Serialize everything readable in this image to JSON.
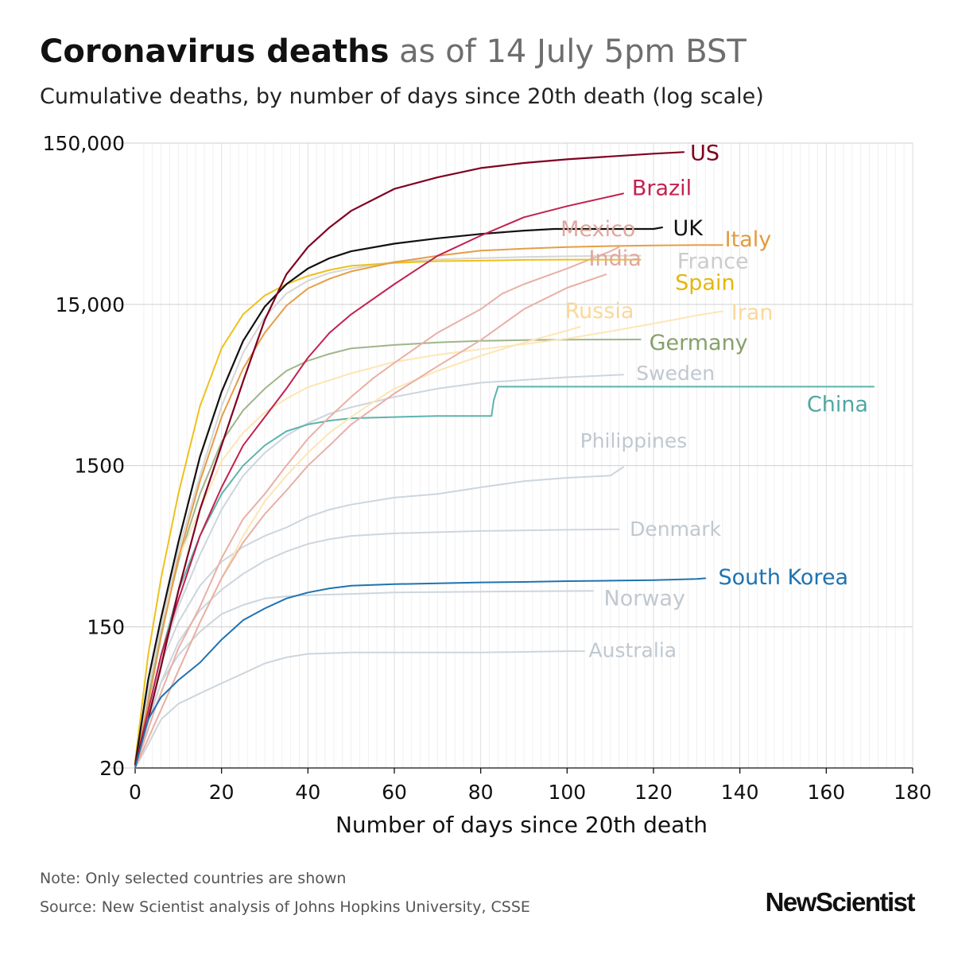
{
  "header": {
    "title_bold": "Coronavirus deaths",
    "title_light": " as of 14 July 5pm BST",
    "subtitle": "Cumulative deaths, by number of days since 20th death (log scale)"
  },
  "footer": {
    "note": "Note: Only selected countries are shown",
    "source": "Source: New Scientist analysis of Johns Hopkins University, CSSE",
    "logo": "NewScientist"
  },
  "chart_data": {
    "type": "line",
    "title": "Coronavirus deaths as of 14 July 5pm BST",
    "subtitle": "Cumulative deaths, by number of days since 20th death (log scale)",
    "xlabel": "Number of days since 20th death",
    "ylabel": "",
    "xlim": [
      0,
      180
    ],
    "ylim": [
      20,
      150000
    ],
    "yscale": "log",
    "x_ticks": [
      0,
      20,
      40,
      60,
      80,
      100,
      120,
      140,
      160,
      180
    ],
    "x_tick_labels": [
      "0",
      "20",
      "40",
      "60",
      "80",
      "100",
      "120",
      "140",
      "160",
      "180"
    ],
    "y_ticks": [
      20,
      150,
      1500,
      15000,
      150000
    ],
    "y_tick_labels": [
      "20",
      "150",
      "1500",
      "15,000",
      "150,000"
    ],
    "grid": true,
    "series": [
      {
        "name": "Australia",
        "color": "#cdd5dd",
        "label_color": "#c0c8d0",
        "x": [
          0,
          3,
          6,
          10,
          15,
          20,
          25,
          30,
          35,
          40,
          50,
          60,
          80,
          100,
          104
        ],
        "y": [
          20,
          28,
          40,
          50,
          58,
          67,
          77,
          89,
          97,
          102,
          104,
          104,
          104,
          106,
          106
        ]
      },
      {
        "name": "Norway",
        "color": "#cdd5dd",
        "label_color": "#c0c8d0",
        "x": [
          0,
          3,
          6,
          10,
          15,
          20,
          25,
          30,
          35,
          40,
          50,
          60,
          80,
          100,
          106
        ],
        "y": [
          21,
          40,
          68,
          100,
          140,
          180,
          205,
          225,
          232,
          236,
          240,
          245,
          248,
          250,
          251
        ]
      },
      {
        "name": "Denmark",
        "color": "#cdd5dd",
        "label_color": "#c0c8d0",
        "x": [
          0,
          3,
          6,
          10,
          15,
          20,
          25,
          30,
          35,
          40,
          45,
          50,
          60,
          80,
          100,
          112
        ],
        "y": [
          20,
          38,
          68,
          120,
          190,
          255,
          320,
          385,
          440,
          490,
          525,
          550,
          570,
          590,
          600,
          605
        ]
      },
      {
        "name": "Philippines",
        "color": "#cdd5dd",
        "label_color": "#c0c8d0",
        "x": [
          0,
          3,
          6,
          10,
          15,
          20,
          25,
          30,
          35,
          40,
          45,
          50,
          60,
          70,
          80,
          90,
          100,
          110,
          113
        ],
        "y": [
          21,
          45,
          90,
          160,
          270,
          380,
          470,
          550,
          620,
          720,
          800,
          860,
          950,
          1000,
          1100,
          1200,
          1260,
          1300,
          1470
        ]
      },
      {
        "name": "Sweden",
        "color": "#cdd5dd",
        "label_color": "#c0c8d0",
        "x": [
          0,
          3,
          6,
          10,
          15,
          20,
          25,
          30,
          35,
          40,
          45,
          50,
          60,
          70,
          80,
          90,
          100,
          110,
          113
        ],
        "y": [
          21,
          45,
          95,
          200,
          420,
          800,
          1300,
          1800,
          2300,
          2750,
          3150,
          3450,
          4000,
          4500,
          4900,
          5100,
          5300,
          5450,
          5500
        ]
      },
      {
        "name": "China",
        "color": "#5db4ad",
        "label_color": "#4fa8a1",
        "x": [
          0,
          3,
          6,
          10,
          15,
          20,
          25,
          30,
          35,
          40,
          45,
          50,
          60,
          70,
          82.5,
          83,
          84,
          171
        ],
        "y": [
          20,
          45,
          100,
          250,
          550,
          1000,
          1500,
          2000,
          2450,
          2700,
          2850,
          2950,
          3000,
          3050,
          3050,
          3800,
          4630,
          4630
        ]
      },
      {
        "name": "Germany",
        "color": "#9fb589",
        "label_color": "#87a06b",
        "x": [
          0,
          3,
          6,
          10,
          15,
          20,
          25,
          30,
          35,
          40,
          45,
          50,
          60,
          70,
          80,
          90,
          100,
          110,
          117
        ],
        "y": [
          20,
          55,
          140,
          380,
          1000,
          2100,
          3300,
          4500,
          5800,
          6700,
          7400,
          8000,
          8400,
          8700,
          8900,
          9000,
          9050,
          9080,
          9090
        ]
      },
      {
        "name": "Iran",
        "color": "#fde6b4",
        "label_color": "#fbd89a",
        "x": [
          0,
          3,
          6,
          10,
          15,
          20,
          25,
          30,
          35,
          40,
          50,
          60,
          70,
          80,
          90,
          100,
          110,
          120,
          130,
          136
        ],
        "y": [
          20,
          60,
          150,
          400,
          800,
          1600,
          2400,
          3200,
          3900,
          4600,
          5600,
          6600,
          7300,
          7900,
          8500,
          9200,
          10200,
          11400,
          12800,
          13600
        ]
      },
      {
        "name": "Russia",
        "color": "#fde6b4",
        "label_color": "#fbd89a",
        "x": [
          0,
          5,
          10,
          15,
          20,
          25,
          30,
          35,
          40,
          45,
          50,
          55,
          60,
          70,
          80,
          90,
          100,
          103
        ],
        "y": [
          20,
          40,
          80,
          160,
          300,
          550,
          900,
          1300,
          1800,
          2400,
          3000,
          3700,
          4500,
          5800,
          7200,
          8700,
          10300,
          10900
        ]
      },
      {
        "name": "Mexico",
        "color": "#e8b0a6",
        "label_color": "#e0a79d",
        "x": [
          0,
          5,
          10,
          15,
          20,
          25,
          30,
          35,
          40,
          45,
          50,
          55,
          60,
          70,
          80,
          85,
          90,
          100,
          110,
          112
        ],
        "y": [
          20,
          50,
          110,
          200,
          400,
          700,
          1000,
          1500,
          2200,
          3000,
          4000,
          5200,
          6500,
          10000,
          14000,
          17500,
          20000,
          25000,
          32000,
          34000
        ]
      },
      {
        "name": "India",
        "color": "#e8b0a6",
        "label_color": "#e0a79d",
        "x": [
          0,
          5,
          10,
          15,
          20,
          25,
          30,
          35,
          40,
          45,
          50,
          60,
          70,
          80,
          90,
          100,
          109
        ],
        "y": [
          20,
          40,
          80,
          160,
          300,
          500,
          750,
          1050,
          1500,
          2000,
          2700,
          4200,
          6200,
          9000,
          14000,
          19000,
          23000
        ]
      },
      {
        "name": "France",
        "color": "#d6d6d6",
        "label_color": "#cccccc",
        "x": [
          0,
          3,
          6,
          10,
          15,
          20,
          25,
          30,
          35,
          40,
          45,
          50,
          60,
          70,
          80,
          90,
          100,
          110,
          117
        ],
        "y": [
          20,
          60,
          150,
          450,
          1300,
          3500,
          7500,
          12500,
          17500,
          21000,
          23500,
          25000,
          27500,
          28500,
          29000,
          29500,
          29800,
          30000,
          30050
        ]
      },
      {
        "name": "Spain",
        "color": "#edc11c",
        "label_color": "#e5b70c",
        "x": [
          0,
          3,
          6,
          10,
          15,
          20,
          25,
          30,
          35,
          40,
          45,
          50,
          60,
          70,
          80,
          90,
          100,
          110,
          117
        ],
        "y": [
          22,
          100,
          300,
          1000,
          3500,
          8000,
          13000,
          17000,
          20000,
          22500,
          24500,
          26000,
          27100,
          27800,
          28000,
          28300,
          28400,
          28400,
          28400
        ]
      },
      {
        "name": "Italy",
        "color": "#e59e46",
        "label_color": "#e39a3f",
        "x": [
          0,
          3,
          6,
          10,
          15,
          20,
          25,
          30,
          35,
          40,
          45,
          50,
          60,
          70,
          80,
          90,
          100,
          110,
          120,
          130,
          136
        ],
        "y": [
          21,
          50,
          130,
          400,
          1200,
          3000,
          6000,
          10000,
          14700,
          18800,
          21600,
          24000,
          27400,
          30000,
          32300,
          33200,
          34000,
          34500,
          34800,
          34950,
          35000
        ]
      },
      {
        "name": "UK",
        "color": "#111111",
        "label_color": "#111111",
        "x": [
          0,
          3,
          6,
          10,
          15,
          20,
          25,
          30,
          35,
          40,
          45,
          50,
          60,
          70,
          80,
          90,
          97,
          120,
          122
        ],
        "y": [
          21,
          70,
          170,
          500,
          1700,
          4300,
          8900,
          14500,
          20000,
          25000,
          29000,
          32000,
          35700,
          38500,
          41000,
          43000,
          44000,
          44000,
          45000
        ]
      },
      {
        "name": "Brazil",
        "color": "#c2214f",
        "label_color": "#c2214f",
        "x": [
          0,
          3,
          6,
          10,
          15,
          20,
          25,
          30,
          35,
          40,
          45,
          50,
          60,
          70,
          80,
          90,
          100,
          110,
          113
        ],
        "y": [
          21,
          45,
          100,
          220,
          550,
          1100,
          2000,
          3000,
          4500,
          7000,
          10000,
          13000,
          20000,
          30000,
          40000,
          52000,
          61000,
          70000,
          73000
        ]
      },
      {
        "name": "US",
        "color": "#800020",
        "label_color": "#800020",
        "x": [
          0,
          3,
          6,
          10,
          15,
          20,
          25,
          30,
          35,
          40,
          45,
          50,
          60,
          70,
          80,
          90,
          100,
          110,
          120,
          127
        ],
        "y": [
          21,
          40,
          85,
          250,
          800,
          2000,
          5000,
          12000,
          23000,
          34000,
          45000,
          57000,
          78000,
          92000,
          105000,
          113000,
          119000,
          124000,
          129000,
          132000
        ]
      },
      {
        "name": "South Korea",
        "color": "#1f73b0",
        "label_color": "#1f73b0",
        "x": [
          0,
          3,
          6,
          10,
          15,
          20,
          25,
          30,
          35,
          40,
          45,
          50,
          60,
          70,
          80,
          90,
          100,
          110,
          120,
          130,
          132
        ],
        "y": [
          20,
          40,
          55,
          70,
          90,
          125,
          165,
          195,
          225,
          245,
          260,
          270,
          276,
          279,
          283,
          285,
          288,
          290,
          292,
          297,
          300
        ]
      }
    ],
    "labels": [
      {
        "series": "US",
        "text": "US",
        "x": 128.5,
        "y": 130000,
        "size": 27
      },
      {
        "series": "Brazil",
        "text": "Brazil",
        "x": 115,
        "y": 79000,
        "size": 27
      },
      {
        "series": "Mexico",
        "text": "Mexico",
        "x": 98.5,
        "y": 44000,
        "size": 27
      },
      {
        "series": "UK",
        "text": "UK",
        "x": 124.5,
        "y": 44500,
        "size": 27
      },
      {
        "series": "Italy",
        "text": "Italy",
        "x": 136.5,
        "y": 38000,
        "size": 27
      },
      {
        "series": "India",
        "text": "India",
        "x": 105,
        "y": 29000,
        "size": 27
      },
      {
        "series": "France",
        "text": "France",
        "x": 125.5,
        "y": 27800,
        "size": 27
      },
      {
        "series": "Spain",
        "text": "Spain",
        "x": 125,
        "y": 20500,
        "size": 27
      },
      {
        "series": "Russia",
        "text": "Russia",
        "x": 99.5,
        "y": 13700,
        "size": 27
      },
      {
        "series": "Iran",
        "text": "Iran",
        "x": 138,
        "y": 13400,
        "size": 27
      },
      {
        "series": "Germany",
        "text": "Germany",
        "x": 119,
        "y": 8700,
        "size": 27
      },
      {
        "series": "Sweden",
        "text": "Sweden",
        "x": 116,
        "y": 5650,
        "size": 25
      },
      {
        "series": "China",
        "text": "China",
        "x": 155.5,
        "y": 3600,
        "size": 27
      },
      {
        "series": "Philippines",
        "text": "Philippines",
        "x": 103,
        "y": 2150,
        "size": 25
      },
      {
        "series": "Denmark",
        "text": "Denmark",
        "x": 114.5,
        "y": 610,
        "size": 25
      },
      {
        "series": "South Korea",
        "text": "South Korea",
        "x": 135,
        "y": 305,
        "size": 27
      },
      {
        "series": "Norway",
        "text": "Norway",
        "x": 108.5,
        "y": 226,
        "size": 27
      },
      {
        "series": "Australia",
        "text": "Australia",
        "x": 105,
        "y": 108,
        "size": 25
      }
    ]
  }
}
